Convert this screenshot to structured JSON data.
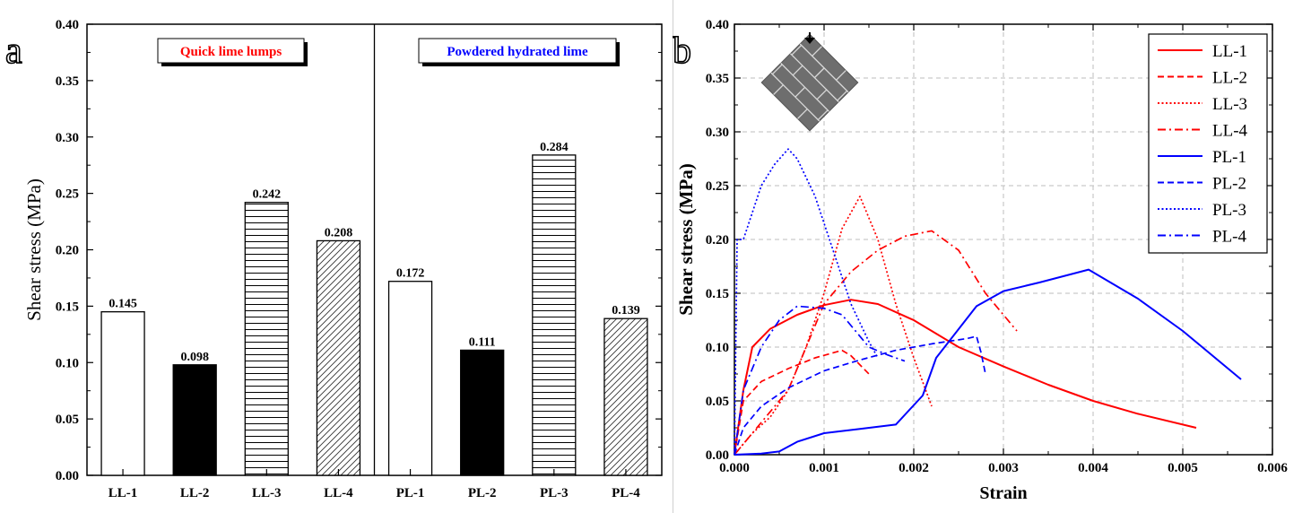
{
  "chart_data": [
    {
      "panel": "a",
      "type": "bar",
      "categories": [
        "LL-1",
        "LL-2",
        "LL-3",
        "LL-4",
        "PL-1",
        "PL-2",
        "PL-3",
        "PL-4"
      ],
      "values": [
        0.145,
        0.098,
        0.242,
        0.208,
        0.172,
        0.111,
        0.284,
        0.139
      ],
      "value_labels": [
        "0.145",
        "0.098",
        "0.242",
        "0.208",
        "0.172",
        "0.111",
        "0.284",
        "0.139"
      ],
      "bar_styles": [
        "open",
        "solid",
        "horizontal-hatch",
        "diagonal-hatch",
        "open",
        "solid",
        "horizontal-hatch",
        "diagonal-hatch"
      ],
      "groups": [
        {
          "label": "Quick lime lumps",
          "color": "#ff0000",
          "categories": [
            "LL-1",
            "LL-2",
            "LL-3",
            "LL-4"
          ]
        },
        {
          "label": "Powdered hydrated lime",
          "color": "#0000ff",
          "categories": [
            "PL-1",
            "PL-2",
            "PL-3",
            "PL-4"
          ]
        }
      ],
      "xlabel": "",
      "ylabel": "Shear stress (MPa)",
      "ylim": [
        0,
        0.4
      ],
      "yticks": [
        "0.00",
        "0.05",
        "0.10",
        "0.15",
        "0.20",
        "0.25",
        "0.30",
        "0.35",
        "0.40"
      ],
      "grid": false
    },
    {
      "panel": "b",
      "type": "line",
      "xlabel": "Strain",
      "ylabel": "Shear stress (MPa)",
      "xlim": [
        0,
        0.006
      ],
      "ylim": [
        0,
        0.4
      ],
      "xticks": [
        "0.000",
        "0.001",
        "0.002",
        "0.003",
        "0.004",
        "0.005",
        "0.006"
      ],
      "yticks": [
        "0.00",
        "0.05",
        "0.10",
        "0.15",
        "0.20",
        "0.25",
        "0.30",
        "0.35",
        "0.40"
      ],
      "grid": true,
      "legend": "top-right",
      "inset_icon": "masonry-diamond-specimen",
      "series": [
        {
          "name": "LL-1",
          "color": "#ff0000",
          "dash": "solid",
          "x": [
            0,
            0.0001,
            0.0002,
            0.0004,
            0.0007,
            0.001,
            0.0013,
            0.0016,
            0.002,
            0.0025,
            0.003,
            0.0035,
            0.004,
            0.0045,
            0.00515
          ],
          "y": [
            0,
            0.06,
            0.1,
            0.117,
            0.13,
            0.139,
            0.144,
            0.14,
            0.125,
            0.1,
            0.082,
            0.065,
            0.05,
            0.038,
            0.025
          ]
        },
        {
          "name": "LL-2",
          "color": "#ff0000",
          "dash": "dash",
          "x": [
            0,
            0.0001,
            0.0003,
            0.0006,
            0.0009,
            0.0012,
            0.0013,
            0.0015
          ],
          "y": [
            0,
            0.05,
            0.068,
            0.08,
            0.09,
            0.097,
            0.092,
            0.075
          ]
        },
        {
          "name": "LL-3",
          "color": "#ff0000",
          "dash": "dot",
          "x": [
            0,
            0.0002,
            0.0004,
            0.0006,
            0.0008,
            0.001,
            0.0012,
            0.0014,
            0.0016,
            0.0018,
            0.002,
            0.0022
          ],
          "y": [
            0,
            0.02,
            0.035,
            0.06,
            0.1,
            0.15,
            0.21,
            0.24,
            0.2,
            0.14,
            0.09,
            0.045
          ]
        },
        {
          "name": "LL-4",
          "color": "#ff0000",
          "dash": "dashdot",
          "x": [
            0,
            0.0003,
            0.0006,
            0.0008,
            0.001,
            0.0013,
            0.0016,
            0.0019,
            0.0022,
            0.0025,
            0.0028,
            0.00315
          ],
          "y": [
            0,
            0.03,
            0.06,
            0.1,
            0.14,
            0.17,
            0.19,
            0.203,
            0.208,
            0.19,
            0.15,
            0.115
          ]
        },
        {
          "name": "PL-1",
          "color": "#0000ff",
          "dash": "solid",
          "x": [
            0,
            0.0003,
            0.0005,
            0.0007,
            0.001,
            0.0014,
            0.0018,
            0.0021,
            0.00225,
            0.0027,
            0.003,
            0.0034,
            0.00395,
            0.0045,
            0.005,
            0.00565
          ],
          "y": [
            0,
            0.001,
            0.003,
            0.012,
            0.02,
            0.024,
            0.028,
            0.055,
            0.09,
            0.138,
            0.152,
            0.16,
            0.172,
            0.145,
            0.115,
            0.07
          ]
        },
        {
          "name": "PL-2",
          "color": "#0000ff",
          "dash": "dash",
          "x": [
            0,
            0.0001,
            0.0003,
            0.0006,
            0.001,
            0.0014,
            0.0018,
            0.0022,
            0.0026,
            0.0027,
            0.00275,
            0.0028
          ],
          "y": [
            0,
            0.025,
            0.045,
            0.062,
            0.078,
            0.088,
            0.097,
            0.103,
            0.108,
            0.11,
            0.095,
            0.075
          ]
        },
        {
          "name": "PL-3",
          "color": "#0000ff",
          "dash": "dot",
          "x": [
            0,
            3e-05,
            0.0001,
            0.0003,
            0.00045,
            0.0006,
            0.0007,
            0.0009,
            0.0011,
            0.0013,
            0.0015,
            0.0016
          ],
          "y": [
            0,
            0.2,
            0.2,
            0.25,
            0.27,
            0.284,
            0.275,
            0.24,
            0.19,
            0.14,
            0.105,
            0.09
          ]
        },
        {
          "name": "PL-4",
          "color": "#0000ff",
          "dash": "dashdot",
          "x": [
            0,
            0.0001,
            0.0003,
            0.0005,
            0.0007,
            0.001,
            0.0012,
            0.0013,
            0.0015,
            0.0017,
            0.0019
          ],
          "y": [
            0,
            0.06,
            0.1,
            0.125,
            0.138,
            0.136,
            0.13,
            0.12,
            0.1,
            0.093,
            0.087
          ]
        }
      ]
    }
  ]
}
